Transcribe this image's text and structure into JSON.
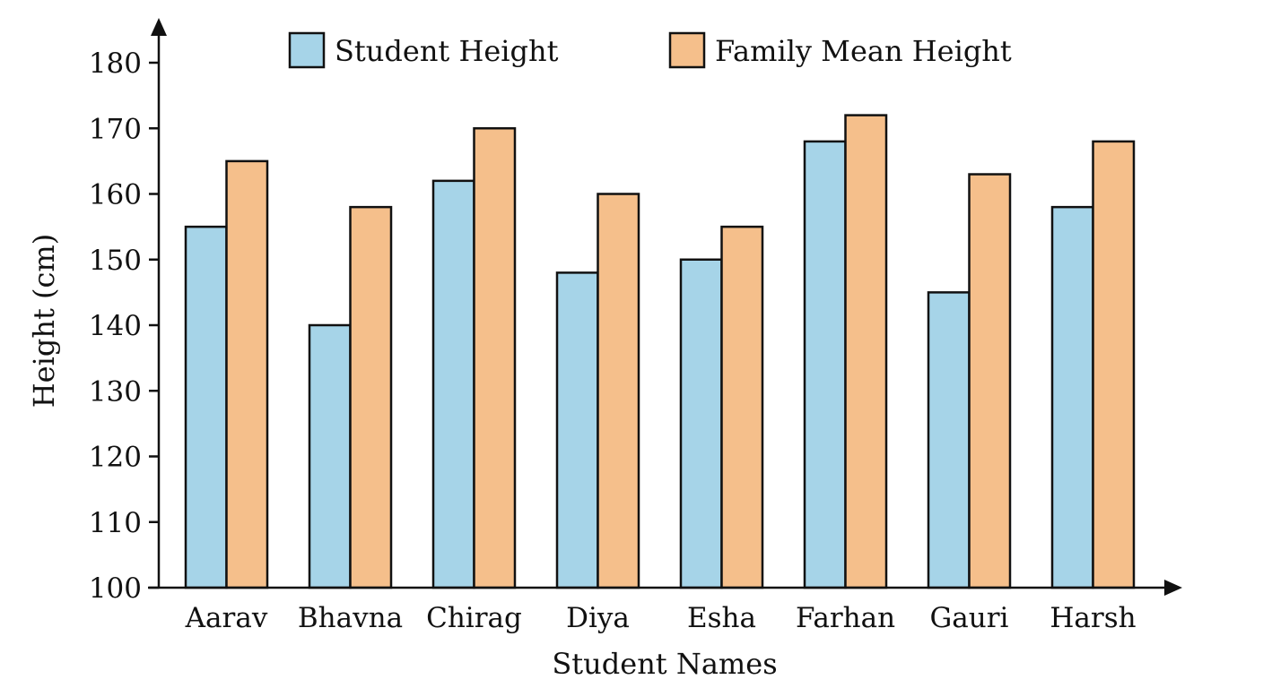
{
  "chart_data": {
    "type": "bar",
    "title": "",
    "xlabel": "Student Names",
    "ylabel": "Height (cm)",
    "ylim": [
      100,
      180
    ],
    "yticks": [
      100,
      110,
      120,
      130,
      140,
      150,
      160,
      170,
      180
    ],
    "categories": [
      "Aarav",
      "Bhavna",
      "Chirag",
      "Diya",
      "Esha",
      "Farhan",
      "Gauri",
      "Harsh"
    ],
    "series": [
      {
        "name": "Student Height",
        "color": "#a6d4e8",
        "values": [
          155,
          140,
          162,
          148,
          150,
          168,
          145,
          158
        ]
      },
      {
        "name": "Family Mean Height",
        "color": "#f5bf8b",
        "values": [
          165,
          158,
          170,
          160,
          155,
          172,
          163,
          168
        ]
      }
    ],
    "legend_position": "top",
    "grid": false
  }
}
